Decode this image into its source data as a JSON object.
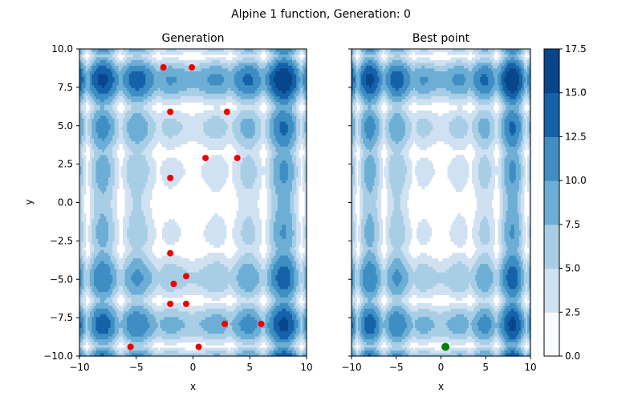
{
  "figure_title": "Alpine 1 function, Generation: 0",
  "chart_data": [
    {
      "type": "heatmap",
      "title": "Generation",
      "xlabel": "x",
      "ylabel": "y",
      "xlim": [
        -10,
        10
      ],
      "ylim": [
        -10,
        10
      ],
      "xticks": [
        -10,
        -5,
        0,
        5,
        10
      ],
      "yticks": [
        -10.0,
        -7.5,
        -5.0,
        -2.5,
        0.0,
        2.5,
        5.0,
        7.5,
        10.0
      ],
      "contour_function": "Alpine 1",
      "contour_levels": [
        0.0,
        2.5,
        5.0,
        7.5,
        10.0,
        12.5,
        15.0,
        17.5
      ],
      "colormap": [
        "#f7fbff",
        "#d0e1f2",
        "#a8cee5",
        "#6daed5",
        "#3e8ec4",
        "#1562a9",
        "#08468b"
      ],
      "series": [
        {
          "name": "",
          "type": "scatter",
          "color": "#ee0000",
          "points": [
            [
              -2.6,
              8.8
            ],
            [
              -0.1,
              8.8
            ],
            [
              -2.0,
              5.9
            ],
            [
              3.0,
              5.9
            ],
            [
              1.1,
              2.9
            ],
            [
              3.9,
              2.9
            ],
            [
              -2.0,
              1.6
            ],
            [
              -2.0,
              -3.3
            ],
            [
              -0.6,
              -4.8
            ],
            [
              -1.7,
              -5.3
            ],
            [
              -2.0,
              -6.6
            ],
            [
              -0.6,
              -6.6
            ],
            [
              2.8,
              -7.9
            ],
            [
              6.0,
              -7.9
            ],
            [
              -5.5,
              -9.4
            ],
            [
              0.5,
              -9.4
            ]
          ]
        }
      ]
    },
    {
      "type": "heatmap",
      "title": "Best point",
      "xlabel": "x",
      "ylabel": "",
      "xlim": [
        -10,
        10
      ],
      "ylim": [
        -10,
        10
      ],
      "xticks": [
        -10,
        -5,
        0,
        5,
        10
      ],
      "yticks": [
        -10.0,
        -7.5,
        -5.0,
        -2.5,
        0.0,
        2.5,
        5.0,
        7.5,
        10.0
      ],
      "contour_function": "Alpine 1",
      "contour_levels": [
        0.0,
        2.5,
        5.0,
        7.5,
        10.0,
        12.5,
        15.0,
        17.5
      ],
      "series": [
        {
          "name": "",
          "type": "scatter",
          "color": "#008000",
          "points": [
            [
              0.5,
              -9.4
            ]
          ]
        }
      ]
    }
  ],
  "colorbar": {
    "ticks": [
      "0.0",
      "2.5",
      "5.0",
      "7.5",
      "10.0",
      "12.5",
      "15.0",
      "17.5"
    ]
  }
}
